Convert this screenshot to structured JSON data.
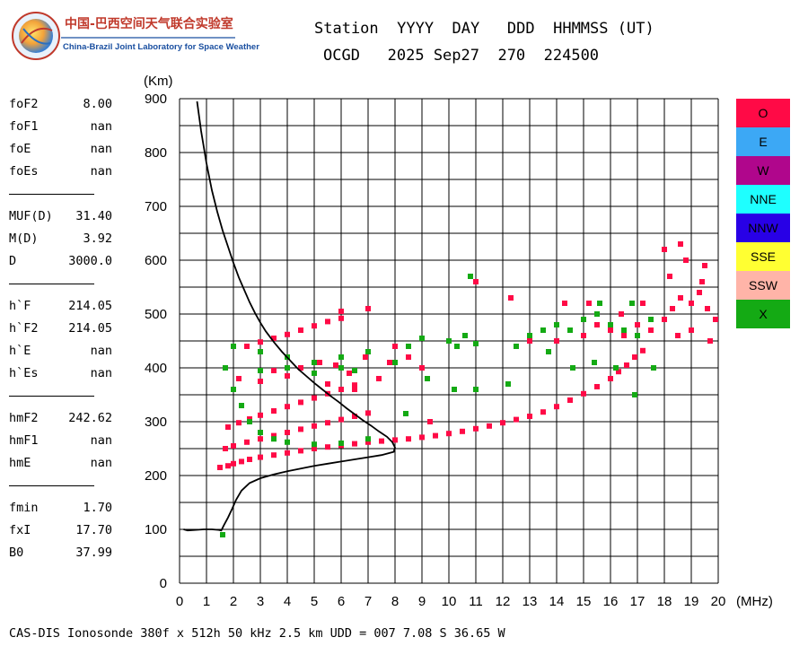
{
  "logo": {
    "title_cn": "中国-巴西空间天气联合实验室",
    "title_en": "China-Brazil Joint Laboratory for Space Weather"
  },
  "header": {
    "line1": "Station  YYYY  DAY   DDD  HHMMSS (UT)",
    "line2": "OCGD   2025 Sep27  270  224500"
  },
  "params": [
    {
      "name": "foF2",
      "value": "8.00"
    },
    {
      "name": "foF1",
      "value": "nan"
    },
    {
      "name": "foE",
      "value": "nan"
    },
    {
      "name": "foEs",
      "value": "nan"
    },
    {
      "name": "MUF(D)",
      "value": "31.40"
    },
    {
      "name": "M(D)",
      "value": "3.92"
    },
    {
      "name": "D",
      "value": "3000.0"
    },
    {
      "name": "h`F",
      "value": "214.05"
    },
    {
      "name": "h`F2",
      "value": "214.05"
    },
    {
      "name": "h`E",
      "value": "nan"
    },
    {
      "name": "h`Es",
      "value": "nan"
    },
    {
      "name": "hmF2",
      "value": "242.62"
    },
    {
      "name": "hmF1",
      "value": "nan"
    },
    {
      "name": "hmE",
      "value": "nan"
    },
    {
      "name": "fmin",
      "value": "1.70"
    },
    {
      "name": "fxI",
      "value": "17.70"
    },
    {
      "name": "B0",
      "value": "37.99"
    }
  ],
  "legend": [
    {
      "label": "O",
      "color": "#ff0a46"
    },
    {
      "label": "E",
      "color": "#3ca8f5"
    },
    {
      "label": "W",
      "color": "#b0068c"
    },
    {
      "label": "NNE",
      "color": "#1effff"
    },
    {
      "label": "NNW",
      "color": "#2800e6"
    },
    {
      "label": "SSE",
      "color": "#ffff32"
    },
    {
      "label": "SSW",
      "color": "#ffb4a8"
    },
    {
      "label": "X",
      "color": "#14aa14"
    }
  ],
  "footer": "CAS-DIS Ionosonde 380f x 512h 50 kHz 2.5 km UDD = 007 7.08 S 36.65 W",
  "chart_data": {
    "type": "scatter",
    "xlabel": "(MHz)",
    "ylabel": "(Km)",
    "xlim": [
      0,
      20
    ],
    "ylim": [
      0,
      900
    ],
    "xticks": [
      "0",
      "1",
      "2",
      "3",
      "4",
      "5",
      "6",
      "7",
      "8",
      "9",
      "10",
      "11",
      "12",
      "13",
      "14",
      "15",
      "16",
      "17",
      "18",
      "19",
      "20"
    ],
    "yticks": [
      "0",
      "100",
      "200",
      "300",
      "400",
      "500",
      "600",
      "700",
      "800",
      "900"
    ],
    "grid": true,
    "series": [
      {
        "name": "O",
        "color": "#ff0a46",
        "points": [
          [
            1.5,
            215
          ],
          [
            1.8,
            218
          ],
          [
            2.0,
            222
          ],
          [
            2.3,
            226
          ],
          [
            2.6,
            230
          ],
          [
            3.0,
            234
          ],
          [
            3.5,
            238
          ],
          [
            4.0,
            242
          ],
          [
            4.5,
            246
          ],
          [
            5.0,
            250
          ],
          [
            5.5,
            253
          ],
          [
            6.0,
            256
          ],
          [
            6.5,
            259
          ],
          [
            7.0,
            262
          ],
          [
            7.5,
            264
          ],
          [
            8.0,
            266
          ],
          [
            8.5,
            268
          ],
          [
            9.0,
            271
          ],
          [
            9.5,
            274
          ],
          [
            10.0,
            278
          ],
          [
            10.5,
            282
          ],
          [
            11.0,
            287
          ],
          [
            11.5,
            292
          ],
          [
            12.0,
            298
          ],
          [
            12.5,
            304
          ],
          [
            13.0,
            310
          ],
          [
            13.5,
            318
          ],
          [
            14.0,
            328
          ],
          [
            14.5,
            340
          ],
          [
            15.0,
            352
          ],
          [
            15.5,
            365
          ],
          [
            16.0,
            380
          ],
          [
            16.3,
            393
          ],
          [
            16.6,
            405
          ],
          [
            16.9,
            420
          ],
          [
            17.2,
            432
          ],
          [
            1.7,
            250
          ],
          [
            2.0,
            255
          ],
          [
            2.5,
            262
          ],
          [
            3.0,
            268
          ],
          [
            3.5,
            274
          ],
          [
            4.0,
            280
          ],
          [
            4.5,
            286
          ],
          [
            5.0,
            292
          ],
          [
            5.5,
            298
          ],
          [
            6.0,
            304
          ],
          [
            6.5,
            310
          ],
          [
            7.0,
            316
          ],
          [
            1.8,
            290
          ],
          [
            2.2,
            298
          ],
          [
            2.6,
            305
          ],
          [
            3.0,
            312
          ],
          [
            3.5,
            320
          ],
          [
            4.0,
            328
          ],
          [
            4.5,
            336
          ],
          [
            5.0,
            344
          ],
          [
            5.5,
            352
          ],
          [
            6.0,
            360
          ],
          [
            6.5,
            368
          ],
          [
            2.5,
            440
          ],
          [
            3.0,
            448
          ],
          [
            3.5,
            455
          ],
          [
            4.0,
            462
          ],
          [
            4.5,
            470
          ],
          [
            5.0,
            478
          ],
          [
            5.5,
            486
          ],
          [
            6.0,
            492
          ],
          [
            3.5,
            395
          ],
          [
            4.5,
            400
          ],
          [
            5.2,
            410
          ],
          [
            5.8,
            405
          ],
          [
            6.3,
            390
          ],
          [
            6.9,
            420
          ],
          [
            7.4,
            380
          ],
          [
            7.8,
            410
          ],
          [
            8.5,
            420
          ],
          [
            9.0,
            400
          ],
          [
            2.2,
            380
          ],
          [
            3.0,
            375
          ],
          [
            4.0,
            385
          ],
          [
            5.5,
            370
          ],
          [
            6.5,
            360
          ],
          [
            14.0,
            450
          ],
          [
            14.5,
            470
          ],
          [
            15.0,
            460
          ],
          [
            15.5,
            480
          ],
          [
            16.0,
            470
          ],
          [
            16.5,
            460
          ],
          [
            17.0,
            480
          ],
          [
            17.5,
            470
          ],
          [
            18.0,
            490
          ],
          [
            18.3,
            510
          ],
          [
            18.6,
            530
          ],
          [
            19.0,
            520
          ],
          [
            19.3,
            540
          ],
          [
            19.6,
            510
          ],
          [
            19.9,
            490
          ],
          [
            18.2,
            570
          ],
          [
            18.8,
            600
          ],
          [
            19.4,
            560
          ],
          [
            19.0,
            470
          ],
          [
            19.7,
            450
          ],
          [
            18.5,
            460
          ],
          [
            7.0,
            510
          ],
          [
            6.0,
            505
          ],
          [
            8.0,
            440
          ],
          [
            9.3,
            300
          ],
          [
            11.0,
            560
          ],
          [
            12.3,
            530
          ],
          [
            13.0,
            450
          ],
          [
            14.3,
            520
          ],
          [
            15.2,
            520
          ],
          [
            16.4,
            500
          ],
          [
            17.2,
            520
          ],
          [
            18.0,
            620
          ],
          [
            18.6,
            630
          ],
          [
            19.5,
            590
          ]
        ]
      },
      {
        "name": "X",
        "color": "#14aa14",
        "points": [
          [
            1.7,
            400
          ],
          [
            2.0,
            360
          ],
          [
            2.3,
            330
          ],
          [
            2.6,
            300
          ],
          [
            3.0,
            280
          ],
          [
            3.5,
            268
          ],
          [
            4.0,
            262
          ],
          [
            5.0,
            258
          ],
          [
            6.0,
            260
          ],
          [
            7.0,
            268
          ],
          [
            2.0,
            440
          ],
          [
            3.0,
            430
          ],
          [
            4.0,
            420
          ],
          [
            5.0,
            410
          ],
          [
            6.0,
            400
          ],
          [
            6.5,
            395
          ],
          [
            3.0,
            395
          ],
          [
            4.0,
            400
          ],
          [
            5.0,
            390
          ],
          [
            6.0,
            420
          ],
          [
            7.0,
            430
          ],
          [
            8.0,
            410
          ],
          [
            8.5,
            440
          ],
          [
            9.0,
            455
          ],
          [
            9.2,
            380
          ],
          [
            10.0,
            450
          ],
          [
            10.3,
            440
          ],
          [
            10.6,
            460
          ],
          [
            11.0,
            445
          ],
          [
            10.2,
            360
          ],
          [
            11.0,
            360
          ],
          [
            12.2,
            370
          ],
          [
            12.5,
            440
          ],
          [
            13.0,
            460
          ],
          [
            13.5,
            470
          ],
          [
            14.0,
            480
          ],
          [
            14.5,
            470
          ],
          [
            15.0,
            490
          ],
          [
            15.5,
            500
          ],
          [
            16.0,
            480
          ],
          [
            16.5,
            470
          ],
          [
            17.0,
            460
          ],
          [
            17.5,
            490
          ],
          [
            16.8,
            520
          ],
          [
            15.6,
            520
          ],
          [
            13.7,
            430
          ],
          [
            14.6,
            400
          ],
          [
            15.4,
            410
          ],
          [
            16.2,
            400
          ],
          [
            17.6,
            400
          ],
          [
            16.9,
            350
          ],
          [
            1.6,
            90
          ],
          [
            8.4,
            315
          ],
          [
            10.8,
            570
          ]
        ]
      }
    ],
    "trace": {
      "name": "profile",
      "color": "#000000",
      "points": [
        [
          0.65,
          895
        ],
        [
          0.8,
          840
        ],
        [
          1.0,
          780
        ],
        [
          1.2,
          730
        ],
        [
          1.4,
          690
        ],
        [
          1.6,
          655
        ],
        [
          1.8,
          625
        ],
        [
          2.0,
          595
        ],
        [
          2.2,
          568
        ],
        [
          2.4,
          545
        ],
        [
          2.6,
          522
        ],
        [
          2.8,
          502
        ],
        [
          3.0,
          484
        ],
        [
          3.2,
          468
        ],
        [
          3.5,
          448
        ],
        [
          3.8,
          430
        ],
        [
          4.1,
          414
        ],
        [
          4.4,
          398
        ],
        [
          4.7,
          385
        ],
        [
          5.0,
          372
        ],
        [
          5.3,
          360
        ],
        [
          5.6,
          348
        ],
        [
          5.9,
          337
        ],
        [
          6.2,
          325
        ],
        [
          6.5,
          314
        ],
        [
          6.8,
          303
        ],
        [
          7.1,
          293
        ],
        [
          7.4,
          282
        ],
        [
          7.7,
          272
        ],
        [
          7.9,
          262
        ],
        [
          8.0,
          252
        ],
        [
          7.95,
          244
        ],
        [
          7.5,
          238
        ],
        [
          7.0,
          234
        ],
        [
          6.5,
          230
        ],
        [
          6.0,
          226
        ],
        [
          5.5,
          222
        ],
        [
          5.0,
          218
        ],
        [
          4.5,
          213
        ],
        [
          4.0,
          208
        ],
        [
          3.5,
          202
        ],
        [
          3.0,
          195
        ],
        [
          2.6,
          186
        ],
        [
          2.3,
          172
        ],
        [
          2.1,
          155
        ],
        [
          1.95,
          138
        ],
        [
          1.8,
          122
        ],
        [
          1.65,
          108
        ],
        [
          1.55,
          98
        ],
        [
          1.45,
          99
        ],
        [
          1.2,
          100
        ],
        [
          0.9,
          100
        ],
        [
          0.6,
          99
        ],
        [
          0.3,
          98
        ],
        [
          0.15,
          100
        ]
      ]
    }
  }
}
